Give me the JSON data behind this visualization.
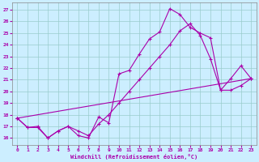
{
  "xlabel": "Windchill (Refroidissement éolien,°C)",
  "xlim": [
    -0.5,
    23.5
  ],
  "ylim": [
    15.4,
    27.6
  ],
  "xticks": [
    0,
    1,
    2,
    3,
    4,
    5,
    6,
    7,
    8,
    9,
    10,
    11,
    12,
    13,
    14,
    15,
    16,
    17,
    18,
    19,
    20,
    21,
    22,
    23
  ],
  "yticks": [
    16,
    17,
    18,
    19,
    20,
    21,
    22,
    23,
    24,
    25,
    26,
    27
  ],
  "line_color": "#aa00aa",
  "bg_color": "#cceeff",
  "grid_color": "#99cccc",
  "line1_x": [
    0,
    1,
    2,
    3,
    4,
    5,
    6,
    7,
    8,
    9,
    10,
    11,
    12,
    13,
    14,
    15,
    16,
    17,
    18,
    19,
    20,
    21,
    22,
    23
  ],
  "line1_y": [
    17.7,
    16.9,
    16.9,
    16.0,
    16.6,
    17.0,
    16.2,
    16.0,
    17.8,
    17.3,
    21.5,
    21.8,
    23.2,
    24.5,
    25.1,
    27.1,
    26.6,
    25.5,
    25.0,
    24.6,
    20.1,
    21.1,
    22.2,
    21.1
  ],
  "line2_x": [
    0,
    1,
    2,
    3,
    4,
    5,
    6,
    7,
    8,
    9,
    10,
    11,
    12,
    13,
    14,
    15,
    16,
    17,
    18,
    19,
    20,
    21,
    22,
    23
  ],
  "line2_y": [
    17.7,
    16.9,
    17.0,
    16.0,
    16.6,
    17.0,
    16.6,
    16.2,
    17.2,
    18.0,
    19.0,
    20.0,
    21.0,
    22.0,
    23.0,
    24.0,
    25.2,
    25.8,
    24.8,
    22.8,
    20.1,
    20.1,
    20.5,
    21.1
  ],
  "line3_x": [
    0,
    23
  ],
  "line3_y": [
    17.7,
    21.1
  ]
}
